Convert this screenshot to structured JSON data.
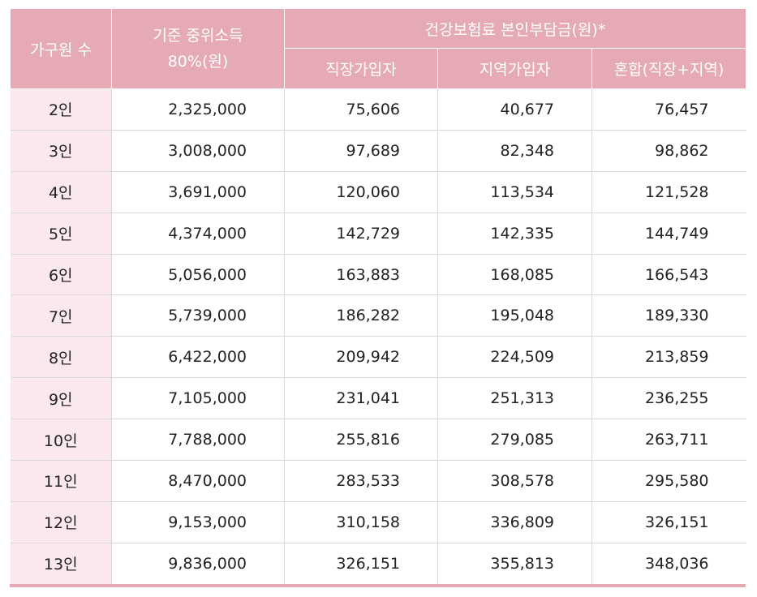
{
  "headers": {
    "household": "가구원 수",
    "income_line1": "기준 중위소득",
    "income_line2": "80%(원)",
    "premium_group": "건강보험료 본인부담금(원)*",
    "employee": "직장가입자",
    "regional": "지역가입자",
    "mixed": "혼합(직장+지역)"
  },
  "rows": [
    {
      "household": "2인",
      "income": "2,325,000",
      "employee": "75,606",
      "regional": "40,677",
      "mixed": "76,457"
    },
    {
      "household": "3인",
      "income": "3,008,000",
      "employee": "97,689",
      "regional": "82,348",
      "mixed": "98,862"
    },
    {
      "household": "4인",
      "income": "3,691,000",
      "employee": "120,060",
      "regional": "113,534",
      "mixed": "121,528"
    },
    {
      "household": "5인",
      "income": "4,374,000",
      "employee": "142,729",
      "regional": "142,335",
      "mixed": "144,749"
    },
    {
      "household": "6인",
      "income": "5,056,000",
      "employee": "163,883",
      "regional": "168,085",
      "mixed": "166,543"
    },
    {
      "household": "7인",
      "income": "5,739,000",
      "employee": "186,282",
      "regional": "195,048",
      "mixed": "189,330"
    },
    {
      "household": "8인",
      "income": "6,422,000",
      "employee": "209,942",
      "regional": "224,509",
      "mixed": "213,859"
    },
    {
      "household": "9인",
      "income": "7,105,000",
      "employee": "231,041",
      "regional": "251,313",
      "mixed": "236,255"
    },
    {
      "household": "10인",
      "income": "7,788,000",
      "employee": "255,816",
      "regional": "279,085",
      "mixed": "263,711"
    },
    {
      "household": "11인",
      "income": "8,470,000",
      "employee": "283,533",
      "regional": "308,578",
      "mixed": "295,580"
    },
    {
      "household": "12인",
      "income": "9,153,000",
      "employee": "310,158",
      "regional": "336,809",
      "mixed": "326,151"
    },
    {
      "household": "13인",
      "income": "9,836,000",
      "employee": "326,151",
      "regional": "355,813",
      "mixed": "348,036"
    }
  ],
  "colors": {
    "header_bg": "#e6aab4",
    "label_bg": "#fbe8ec",
    "grid": "#d8d8d8"
  }
}
